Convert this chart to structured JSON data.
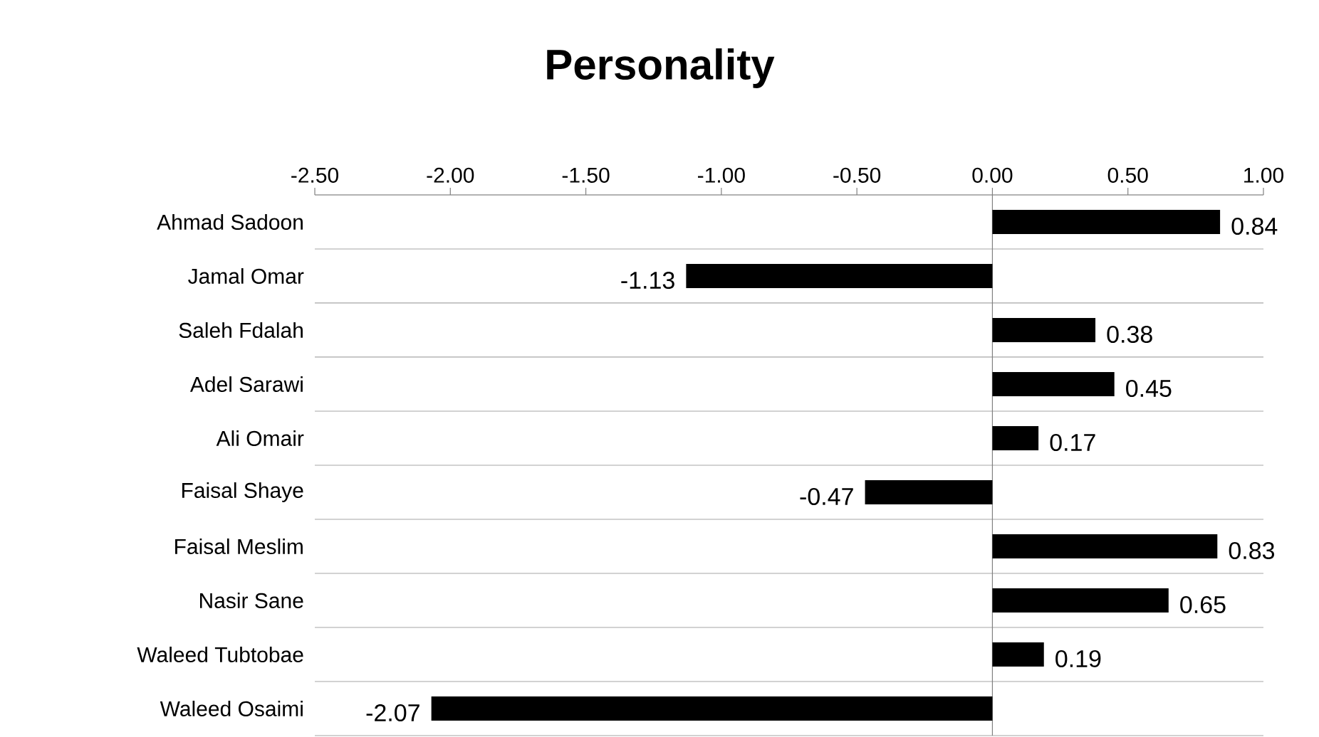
{
  "chart_data": {
    "type": "bar",
    "orientation": "horizontal",
    "title": "Personality",
    "categories": [
      "Ahmad Sadoon",
      "Jamal Omar",
      "Saleh Fdalah",
      "Adel Sarawi",
      "Ali Omair",
      "Faisal Shaye",
      "Faisal Meslim",
      "Nasir Sane",
      "Waleed Tubtobae",
      "Waleed Osaimi"
    ],
    "values": [
      0.84,
      -1.13,
      0.38,
      0.45,
      0.17,
      -0.47,
      0.83,
      0.65,
      0.19,
      -2.07
    ],
    "color": "#000000",
    "xlim": [
      -2.5,
      1.0
    ],
    "xticks": [
      {
        "value": -2.5,
        "label": "-2.50"
      },
      {
        "value": -2.0,
        "label": "-2.00"
      },
      {
        "value": -1.5,
        "label": "-1.50"
      },
      {
        "value": -1.0,
        "label": "-1.00"
      },
      {
        "value": -0.5,
        "label": "-0.50"
      },
      {
        "value": 0.0,
        "label": "0.00"
      },
      {
        "value": 0.5,
        "label": "0.50"
      },
      {
        "value": 1.0,
        "label": "1.00"
      }
    ],
    "data_labels": true,
    "grid": "y"
  }
}
